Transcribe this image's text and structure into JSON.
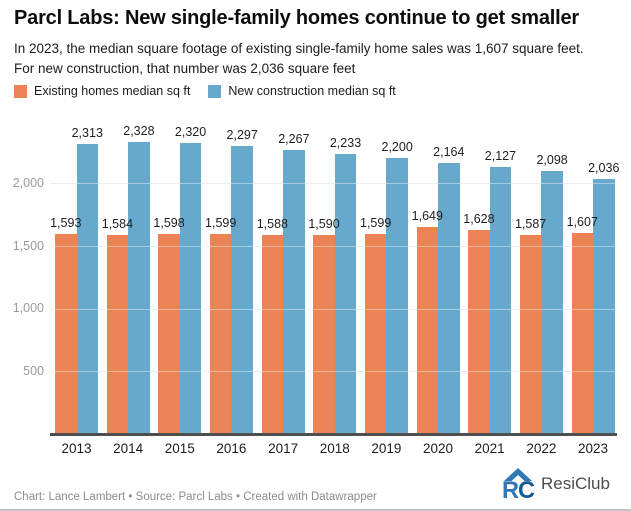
{
  "header": {
    "title": "Parcl Labs: New single-family homes continue to get smaller",
    "subtitle_lines": [
      "In 2023, the median square footage of existing single-family home sales was 1,607 square feet.",
      "For new construction, that number was 2,036 square feet"
    ]
  },
  "chart_data": {
    "type": "bar",
    "categories": [
      "2013",
      "2014",
      "2015",
      "2016",
      "2017",
      "2018",
      "2019",
      "2020",
      "2021",
      "2022",
      "2023"
    ],
    "series": [
      {
        "name": "Existing homes median sq ft",
        "color": "#EB8354",
        "values": [
          1593,
          1584,
          1598,
          1599,
          1588,
          1590,
          1599,
          1649,
          1628,
          1587,
          1607
        ]
      },
      {
        "name": "New construction median sq ft",
        "color": "#66A9CD",
        "values": [
          2313,
          2328,
          2320,
          2297,
          2267,
          2233,
          2200,
          2164,
          2127,
          2098,
          2036
        ]
      }
    ],
    "title": "Parcl Labs: New single-family homes continue to get smaller",
    "xlabel": "",
    "ylabel": "",
    "ylim": [
      0,
      2500
    ],
    "yticks": [
      500,
      1000,
      1500,
      2000
    ],
    "grid": true,
    "value_labels": true,
    "legend_position": "top-left"
  },
  "footer": {
    "credit": "Chart: Lance Lambert • Source: Parcl Labs • Created with Datawrapper"
  },
  "logo": {
    "text": "ResiClub",
    "color": "#3077B4",
    "accent": "#155A96"
  }
}
